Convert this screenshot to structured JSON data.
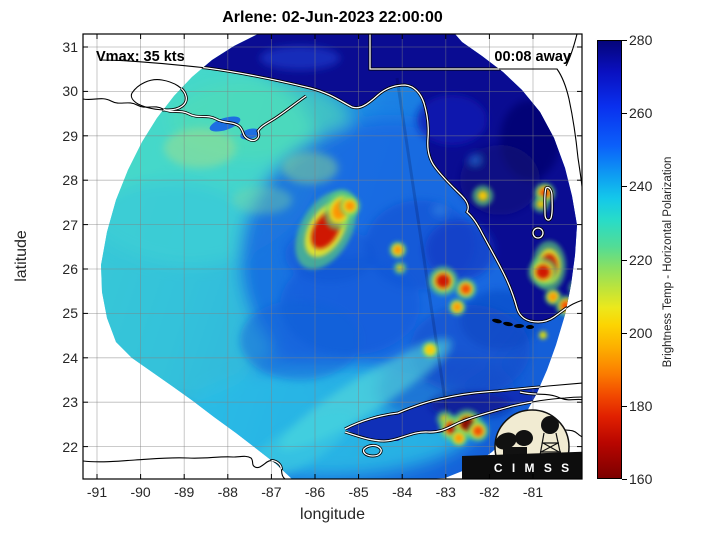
{
  "figure": {
    "title": "Arlene: 02-Jun-2023 22:00:00",
    "annotations": {
      "vmax": "Vmax: 35 kts",
      "time_offset": "00:08 away"
    },
    "logo": {
      "text": "C I M S S"
    }
  },
  "axes": {
    "x": {
      "label": "longitude",
      "ticks": [
        -91,
        -90,
        -89,
        -88,
        -87,
        -86,
        -85,
        -84,
        -83,
        -82,
        -81
      ],
      "range": [
        -91.3,
        -79.9
      ]
    },
    "y": {
      "label": "latitude",
      "ticks": [
        31,
        30,
        29,
        28,
        27,
        26,
        25,
        24,
        23,
        22
      ],
      "range": [
        21.3,
        31.3
      ]
    }
  },
  "colorbar": {
    "label": "Brightness Temp - Horizontal Polarization",
    "ticks": [
      280,
      260,
      240,
      220,
      200,
      180,
      160
    ],
    "range": [
      160,
      280
    ],
    "colors_low_to_high": [
      "#7c0000",
      "#e02000",
      "#fb7d00",
      "#fcd402",
      "#8ce060",
      "#28dcc8",
      "#0e9ff2",
      "#0a30ee",
      "#05057a"
    ]
  },
  "chart_data": {
    "type": "heatmap",
    "title": "Arlene: 02-Jun-2023 22:00:00",
    "field": "Microwave Brightness Temperature, Horizontal Polarization (K)",
    "storm": {
      "name": "Arlene",
      "valid_time": "02-Jun-2023 22:00:00",
      "vmax_kts": 35,
      "overpass_time_offset": "00:08 away"
    },
    "xlabel": "longitude",
    "ylabel": "latitude",
    "lon_range": [
      -91.3,
      -79.9
    ],
    "lat_range": [
      21.3,
      31.3
    ],
    "value_range_k": [
      160,
      280
    ],
    "regions": [
      {
        "name": "gulf-ocean-west-turquoise",
        "approx_bt_k": 232
      },
      {
        "name": "gulf-ocean-central-blue",
        "approx_bt_k": 252
      },
      {
        "name": "land-gulf-coast-florida-cuba",
        "approx_bt_k": 278
      },
      {
        "name": "outside-swath",
        "approx_bt_k": null
      }
    ],
    "hot_spots": [
      {
        "name": "main-convective-burst",
        "lon": -85.75,
        "lat": 26.88,
        "bt_k": 182,
        "size": 12,
        "ry": 1.7,
        "rot": 30
      },
      {
        "name": "burst-tail",
        "lon": -85.43,
        "lat": 27.33,
        "bt_k": 198,
        "size": 7,
        "ry": 1.4,
        "rot": 20
      },
      {
        "name": "cell-ne-of-burst",
        "lon": -85.2,
        "lat": 27.42,
        "bt_k": 194,
        "size": 5
      },
      {
        "name": "cell-gulf-1",
        "lon": -84.1,
        "lat": 26.43,
        "bt_k": 192,
        "size": 4
      },
      {
        "name": "cell-gulf-2",
        "lon": -84.05,
        "lat": 26.02,
        "bt_k": 202,
        "size": 3
      },
      {
        "name": "cell-central-florida",
        "lon": -82.15,
        "lat": 27.65,
        "bt_k": 205,
        "size": 5
      },
      {
        "name": "cell-east-coast-1",
        "lon": -80.73,
        "lat": 27.71,
        "bt_k": 188,
        "size": 5
      },
      {
        "name": "cell-east-coast-2",
        "lon": -80.82,
        "lat": 27.46,
        "bt_k": 202,
        "size": 4
      },
      {
        "name": "cell-se-florida-1",
        "lon": -80.63,
        "lat": 26.07,
        "bt_k": 178,
        "size": 8,
        "ry": 1.5
      },
      {
        "name": "cell-se-florida-2",
        "lon": -80.77,
        "lat": 25.93,
        "bt_k": 175,
        "size": 7
      },
      {
        "name": "cell-se-florida-3",
        "lon": -80.54,
        "lat": 25.37,
        "bt_k": 195,
        "size": 4
      },
      {
        "name": "cell-sw-florida-1",
        "lon": -83.06,
        "lat": 25.73,
        "bt_k": 182,
        "size": 7
      },
      {
        "name": "cell-sw-florida-2",
        "lon": -82.54,
        "lat": 25.55,
        "bt_k": 185,
        "size": 5
      },
      {
        "name": "cell-sw-florida-3",
        "lon": -82.74,
        "lat": 25.14,
        "bt_k": 196,
        "size": 4
      },
      {
        "name": "cell-open-gulf-south",
        "lon": -83.36,
        "lat": 24.18,
        "bt_k": 200,
        "size": 4
      },
      {
        "name": "cell-florida-strait-1",
        "lon": -80.24,
        "lat": 25.17,
        "bt_k": 185,
        "size": 5
      },
      {
        "name": "cell-florida-strait-2",
        "lon": -79.99,
        "lat": 25.57,
        "bt_k": 205,
        "size": 4
      },
      {
        "name": "cell-florida-strait-3",
        "lon": -80.77,
        "lat": 24.51,
        "bt_k": 208,
        "size": 4
      },
      {
        "name": "cuba-cell-1",
        "lon": -83.02,
        "lat": 22.62,
        "bt_k": 205,
        "size": 4
      },
      {
        "name": "cuba-cell-2",
        "lon": -82.86,
        "lat": 22.42,
        "bt_k": 180,
        "size": 6
      },
      {
        "name": "cuba-cell-3",
        "lon": -82.51,
        "lat": 22.51,
        "bt_k": 172,
        "size": 7
      },
      {
        "name": "cuba-cell-4",
        "lon": -82.26,
        "lat": 22.35,
        "bt_k": 185,
        "size": 5
      },
      {
        "name": "cuba-cell-5",
        "lon": -82.7,
        "lat": 22.19,
        "bt_k": 195,
        "size": 4
      }
    ]
  }
}
